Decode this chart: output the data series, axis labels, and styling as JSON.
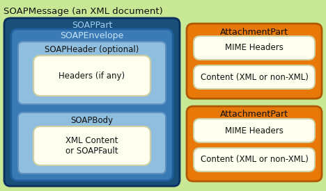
{
  "bg_color": "#c8e896",
  "title": "SOAPMessage (an XML document)",
  "title_color": "#111111",
  "title_fontsize": 9.5,
  "soap_part_bg": "#1a4f7a",
  "soap_part_label": "SOAPPart",
  "soap_part_label_color": "#a0d0f0",
  "soap_envelope_bg": "#3a7ab5",
  "soap_envelope_label": "SOAPEnvelope",
  "soap_envelope_label_color": "#c8e4f8",
  "soap_header_bg": "#90bede",
  "soap_header_label": "SOAPHeader (optional)",
  "soap_header_label_color": "#111111",
  "headers_bg": "#fffff0",
  "headers_label": "Headers (if any)",
  "headers_label_color": "#111111",
  "soap_body_bg": "#90bede",
  "soap_body_label": "SOAPBody",
  "soap_body_label_color": "#111111",
  "xml_content_bg": "#fffff0",
  "xml_content_label": "XML Content\nor SOAPFault",
  "xml_content_label_color": "#111111",
  "attachment_bg": "#e87808",
  "attachment_label": "AttachmentPart",
  "attachment_label_color": "#111111",
  "mime_bg": "#fffff0",
  "mime_label": "MIME Headers",
  "mime_label_color": "#111111",
  "content_bg": "#fffff0",
  "content_label": "Content (XML or non-XML)",
  "content_label_color": "#111111",
  "soap_part_edge": "#0a3060",
  "soap_envelope_edge": "#2060a0",
  "soap_header_edge": "#6090c0",
  "soap_body_edge": "#6090c0",
  "inner_edge": "#d0d0a0",
  "attachment_edge": "#b05800"
}
